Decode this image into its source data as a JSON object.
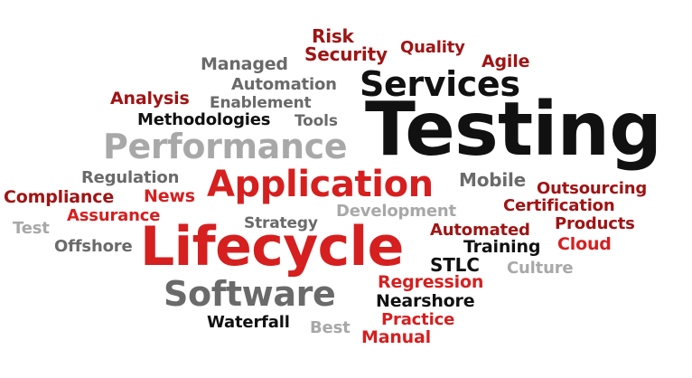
{
  "palette": {
    "red": "#d61f1f",
    "dark_red": "#a01414",
    "black": "#111111",
    "dark_gray": "#6a6a6a",
    "light_gray": "#a8a8a8"
  },
  "words": [
    {
      "text": "Risk",
      "color": "dark_red"
    },
    {
      "text": "Security",
      "color": "dark_red"
    },
    {
      "text": "Quality",
      "color": "dark_red"
    },
    {
      "text": "Agile",
      "color": "dark_red"
    },
    {
      "text": "Managed",
      "color": "dark_gray"
    },
    {
      "text": "Automation",
      "color": "dark_gray"
    },
    {
      "text": "Services",
      "color": "black"
    },
    {
      "text": "Analysis",
      "color": "dark_red"
    },
    {
      "text": "Enablement",
      "color": "dark_gray"
    },
    {
      "text": "Methodologies",
      "color": "black"
    },
    {
      "text": "Tools",
      "color": "dark_gray"
    },
    {
      "text": "Testing",
      "color": "black"
    },
    {
      "text": "Performance",
      "color": "light_gray"
    },
    {
      "text": "Regulation",
      "color": "dark_gray"
    },
    {
      "text": "Mobile",
      "color": "dark_gray"
    },
    {
      "text": "Compliance",
      "color": "dark_red"
    },
    {
      "text": "News",
      "color": "red"
    },
    {
      "text": "Application",
      "color": "red"
    },
    {
      "text": "Outsourcing",
      "color": "dark_red"
    },
    {
      "text": "Certification",
      "color": "dark_red"
    },
    {
      "text": "Assurance",
      "color": "red"
    },
    {
      "text": "Development",
      "color": "light_gray"
    },
    {
      "text": "Test",
      "color": "light_gray"
    },
    {
      "text": "Strategy",
      "color": "dark_gray"
    },
    {
      "text": "Products",
      "color": "dark_red"
    },
    {
      "text": "Automated",
      "color": "dark_red"
    },
    {
      "text": "Offshore",
      "color": "dark_gray"
    },
    {
      "text": "Lifecycle",
      "color": "red"
    },
    {
      "text": "Training",
      "color": "black"
    },
    {
      "text": "Cloud",
      "color": "red"
    },
    {
      "text": "STLC",
      "color": "black"
    },
    {
      "text": "Culture",
      "color": "light_gray"
    },
    {
      "text": "Regression",
      "color": "red"
    },
    {
      "text": "Software",
      "color": "dark_gray"
    },
    {
      "text": "Nearshore",
      "color": "black"
    },
    {
      "text": "Practice",
      "color": "red"
    },
    {
      "text": "Waterfall",
      "color": "black"
    },
    {
      "text": "Best",
      "color": "light_gray"
    },
    {
      "text": "Manual",
      "color": "red"
    }
  ]
}
